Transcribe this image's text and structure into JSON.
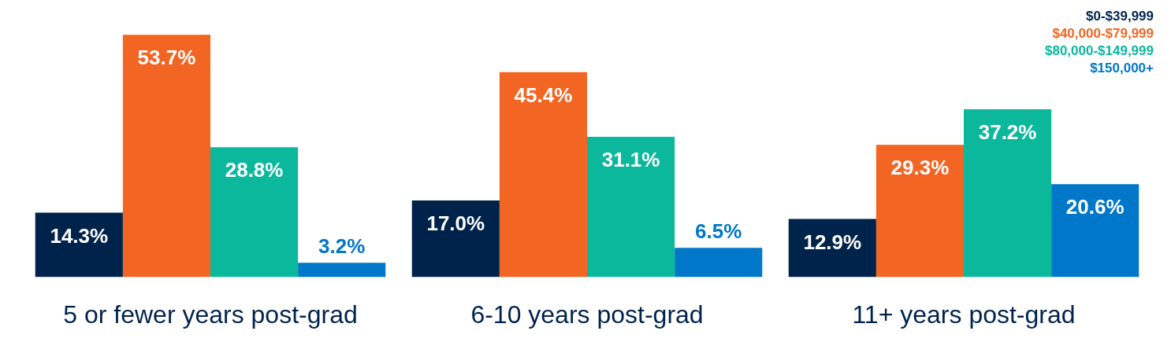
{
  "chart_data": {
    "type": "bar",
    "categories": [
      "5 or fewer years post-grad",
      "6-10 years post-grad",
      "11+ years post-grad"
    ],
    "series": [
      {
        "name": "$0-$39,999",
        "color": "#00234b",
        "values": [
          14.3,
          17.0,
          12.9
        ],
        "value_labels": [
          "14.3%",
          "17.0%",
          "12.9%"
        ]
      },
      {
        "name": "$40,000-$79,999",
        "color": "#f26522",
        "values": [
          53.7,
          45.4,
          29.3
        ],
        "value_labels": [
          "53.7%",
          "45.4%",
          "29.3%"
        ]
      },
      {
        "name": "$80,000-$149,999",
        "color": "#0bb89c",
        "values": [
          28.8,
          31.1,
          37.2
        ],
        "value_labels": [
          "28.8%",
          "31.1%",
          "37.2%"
        ]
      },
      {
        "name": "$150,000+",
        "color": "#0077c8",
        "values": [
          3.2,
          6.5,
          20.6
        ],
        "value_labels": [
          "3.2%",
          "6.5%",
          "20.6%"
        ]
      }
    ],
    "grid": false,
    "legend": "top right"
  }
}
